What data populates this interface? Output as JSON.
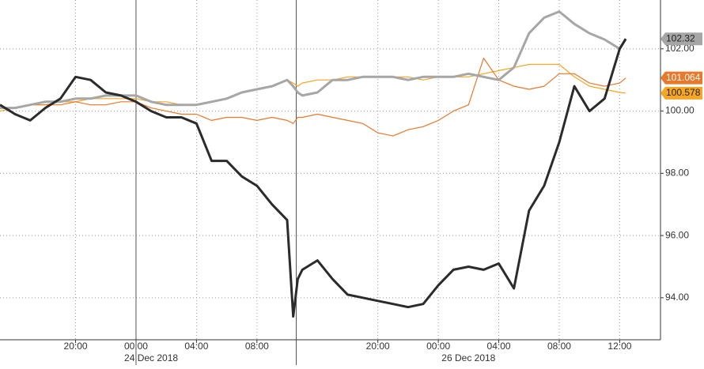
{
  "chart_data": {
    "type": "line",
    "x": [
      0,
      1,
      2,
      3,
      4,
      5,
      6,
      7,
      8,
      9,
      10,
      11,
      12,
      13,
      14,
      15,
      16,
      17,
      18,
      19,
      19.4,
      19.7,
      20,
      21,
      22,
      23,
      24,
      25,
      26,
      27,
      28,
      29,
      30,
      31,
      32,
      33,
      34,
      35,
      36,
      37,
      38,
      39,
      40,
      41,
      41.4
    ],
    "series": [
      {
        "color": "#2b2b2b",
        "width": 3,
        "values": [
          100.2,
          99.9,
          99.7,
          100.1,
          100.4,
          101.1,
          101.0,
          100.6,
          100.5,
          100.3,
          100.0,
          99.8,
          99.8,
          99.6,
          98.4,
          98.4,
          97.9,
          97.6,
          97.0,
          96.5,
          93.4,
          94.6,
          94.9,
          95.2,
          94.6,
          94.1,
          94.0,
          93.9,
          93.8,
          93.7,
          93.8,
          94.4,
          94.9,
          95.0,
          94.9,
          95.1,
          94.3,
          96.8,
          97.6,
          99.0,
          100.8,
          100.0,
          100.4,
          102.0,
          102.32
        ]
      },
      {
        "color": "#a6a6a6",
        "width": 3,
        "label": true,
        "label_text": "#222",
        "values": [
          100.1,
          100.1,
          100.2,
          100.3,
          100.3,
          100.4,
          100.4,
          100.5,
          100.5,
          100.5,
          100.3,
          100.2,
          100.2,
          100.2,
          100.3,
          100.4,
          100.6,
          100.7,
          100.8,
          101.0,
          100.8,
          100.6,
          100.5,
          100.6,
          101.0,
          101.0,
          101.1,
          101.1,
          101.1,
          101.0,
          101.1,
          101.1,
          101.1,
          101.2,
          101.1,
          101.0,
          101.4,
          102.5,
          103.0,
          103.2,
          102.8,
          102.5,
          102.3,
          102.0,
          102.32
        ]
      },
      {
        "color": "#e8782a",
        "width": 1.2,
        "label": true,
        "label_text": "#fff",
        "values": [
          100.1,
          100.1,
          100.2,
          100.2,
          100.2,
          100.3,
          100.2,
          100.2,
          100.3,
          100.3,
          100.1,
          100.0,
          99.9,
          99.9,
          99.7,
          99.8,
          99.8,
          99.7,
          99.8,
          99.7,
          99.6,
          99.8,
          99.8,
          99.9,
          99.8,
          99.7,
          99.6,
          99.3,
          99.2,
          99.4,
          99.5,
          99.7,
          100.0,
          100.2,
          101.7,
          101.0,
          100.8,
          100.7,
          100.8,
          101.2,
          101.2,
          100.9,
          100.8,
          100.9,
          101.064
        ]
      },
      {
        "color": "#f5a623",
        "width": 1.2,
        "label": true,
        "label_text": "#222",
        "values": [
          100.0,
          100.1,
          100.2,
          100.2,
          100.3,
          100.3,
          100.4,
          100.4,
          100.4,
          100.4,
          100.3,
          100.3,
          100.2,
          100.2,
          100.3,
          100.4,
          100.6,
          100.7,
          100.8,
          101.0,
          100.9,
          100.8,
          100.9,
          101.0,
          101.0,
          101.1,
          101.1,
          101.1,
          101.1,
          101.1,
          101.0,
          101.1,
          101.1,
          101.1,
          101.2,
          101.3,
          101.4,
          101.5,
          101.5,
          101.5,
          101.1,
          100.8,
          100.7,
          100.6,
          100.578
        ]
      }
    ],
    "xlim": [
      0,
      43.7
    ],
    "xticks": [
      {
        "value": 5,
        "label": "20:00"
      },
      {
        "value": 9,
        "label": "00:00"
      },
      {
        "value": 13,
        "label": "04:00"
      },
      {
        "value": 17,
        "label": "08:00"
      },
      {
        "value": 25,
        "label": "20:00"
      },
      {
        "value": 29,
        "label": "00:00"
      },
      {
        "value": 33,
        "label": "04:00"
      },
      {
        "value": 37,
        "label": "08:00"
      },
      {
        "value": 41,
        "label": "12:00"
      }
    ],
    "date_labels": [
      {
        "value": 10,
        "label": "24 Dec 2018"
      },
      {
        "value": 31,
        "label": "26 Dec 2018"
      }
    ],
    "day_breaks": [
      9,
      19.6
    ],
    "ylim": [
      92.65,
      103.57
    ],
    "yticks": [
      {
        "value": 94,
        "label": "94.00"
      },
      {
        "value": 96,
        "label": "96.00"
      },
      {
        "value": 98,
        "label": "98.00"
      },
      {
        "value": 100,
        "label": "100.00"
      },
      {
        "value": 102,
        "label": "102.00"
      }
    ],
    "grid": true
  }
}
